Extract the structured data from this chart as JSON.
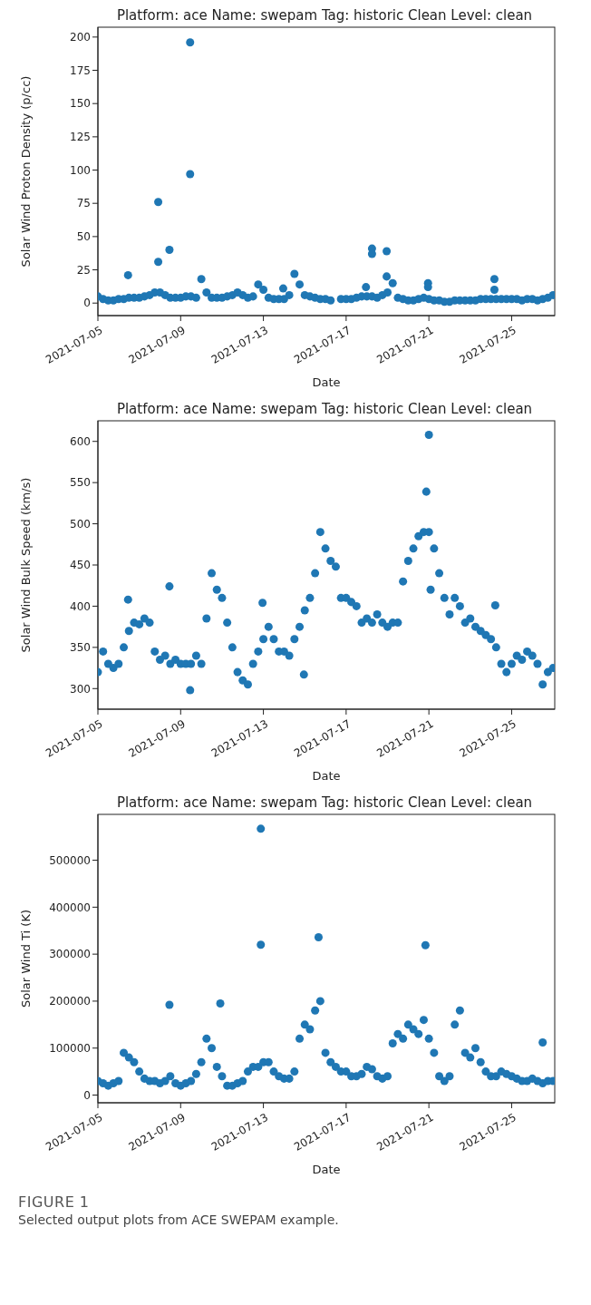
{
  "chart_data": [
    {
      "type": "scatter",
      "title": "Platform: ace Name: swepam Tag: historic Clean Level: clean",
      "xlabel": "Date",
      "ylabel": "Solar Wind Proton Density (p/cc)",
      "x": [
        "2021-07-05T00:00",
        "2021-07-05T06:00",
        "2021-07-05T12:00",
        "2021-07-05T18:00",
        "2021-07-06T00:00",
        "2021-07-06T06:00",
        "2021-07-06T12:00",
        "2021-07-06T18:00",
        "2021-07-07T00:00",
        "2021-07-07T06:00",
        "2021-07-07T12:00",
        "2021-07-07T18:00",
        "2021-07-08T00:00",
        "2021-07-08T06:00",
        "2021-07-08T12:00",
        "2021-07-08T18:00",
        "2021-07-09T00:00",
        "2021-07-09T06:00",
        "2021-07-09T12:00",
        "2021-07-09T18:00",
        "2021-07-10T00:00",
        "2021-07-10T06:00",
        "2021-07-10T12:00",
        "2021-07-10T18:00",
        "2021-07-11T00:00",
        "2021-07-11T06:00",
        "2021-07-11T12:00",
        "2021-07-11T18:00",
        "2021-07-12T00:00",
        "2021-07-12T06:00",
        "2021-07-12T12:00",
        "2021-07-12T18:00",
        "2021-07-13T00:00",
        "2021-07-13T06:00",
        "2021-07-13T12:00",
        "2021-07-13T18:00",
        "2021-07-14T00:00",
        "2021-07-14T06:00",
        "2021-07-14T12:00",
        "2021-07-14T18:00",
        "2021-07-15T00:00",
        "2021-07-15T06:00",
        "2021-07-15T12:00",
        "2021-07-15T18:00",
        "2021-07-16T00:00",
        "2021-07-16T06:00",
        "2021-07-16T12:00",
        "2021-07-16T18:00",
        "2021-07-17T00:00",
        "2021-07-17T06:00",
        "2021-07-17T12:00",
        "2021-07-17T18:00",
        "2021-07-18T00:00",
        "2021-07-18T06:00",
        "2021-07-18T12:00",
        "2021-07-18T18:00",
        "2021-07-19T00:00",
        "2021-07-19T06:00",
        "2021-07-19T12:00",
        "2021-07-19T18:00",
        "2021-07-20T00:00",
        "2021-07-20T06:00",
        "2021-07-20T12:00",
        "2021-07-20T18:00",
        "2021-07-21T00:00",
        "2021-07-21T06:00",
        "2021-07-21T12:00",
        "2021-07-21T18:00",
        "2021-07-22T00:00",
        "2021-07-22T06:00",
        "2021-07-22T12:00",
        "2021-07-22T18:00",
        "2021-07-23T00:00",
        "2021-07-23T06:00",
        "2021-07-23T12:00",
        "2021-07-23T18:00",
        "2021-07-24T00:00",
        "2021-07-24T06:00",
        "2021-07-24T12:00",
        "2021-07-24T18:00",
        "2021-07-25T00:00",
        "2021-07-25T06:00",
        "2021-07-25T12:00",
        "2021-07-25T18:00",
        "2021-07-26T00:00",
        "2021-07-26T06:00",
        "2021-07-26T12:00",
        "2021-07-26T18:00",
        "2021-07-27T00:00"
      ],
      "marker": "circle",
      "xlim": [
        "2021-07-05",
        "2021-07-27T02:00"
      ],
      "xticks": [
        "2021-07-05",
        "2021-07-09",
        "2021-07-13",
        "2021-07-17",
        "2021-07-21",
        "2021-07-25"
      ],
      "ylim": [
        -9.4,
        207.4
      ],
      "yticks": [
        0,
        25,
        50,
        75,
        100,
        125,
        150,
        175,
        200
      ],
      "series": [
        {
          "color": "#1f77b4",
          "values": [
            5,
            3,
            2,
            2,
            3,
            3,
            4,
            4,
            4,
            5,
            6,
            8,
            8,
            6,
            4,
            4,
            4,
            5,
            5,
            4,
            18,
            8,
            4,
            4,
            4,
            5,
            6,
            8,
            6,
            4,
            5,
            14,
            10,
            4,
            3,
            3,
            3,
            6,
            22,
            14,
            6,
            5,
            4,
            3,
            3,
            2,
            null,
            3,
            3,
            3,
            4,
            5,
            5,
            5,
            4,
            6,
            8,
            15,
            4,
            3,
            2,
            2,
            3,
            4,
            3,
            2,
            2,
            1,
            1,
            2,
            2,
            2,
            2,
            2,
            3,
            3,
            3,
            3,
            3,
            3,
            3,
            3,
            2,
            3,
            3,
            2,
            3,
            4,
            6
          ]
        },
        {
          "color": "#1f77b4",
          "x": [
            "2021-07-06T11:00",
            "2021-07-07T22:00",
            "2021-07-07T22:00",
            "2021-07-08T11:00",
            "2021-07-09T11:00",
            "2021-07-09T11:00",
            "2021-07-13T23:00",
            "2021-07-17T23:00",
            "2021-07-18T06:00",
            "2021-07-18T06:00",
            "2021-07-18T23:00",
            "2021-07-18T23:00",
            "2021-07-20T23:00",
            "2021-07-20T23:00",
            "2021-07-24T04:00",
            "2021-07-24T04:00"
          ],
          "values": [
            21,
            76,
            31,
            40,
            196,
            97,
            11,
            12,
            41,
            37,
            39,
            20,
            15,
            12,
            18,
            10
          ]
        }
      ]
    },
    {
      "type": "scatter",
      "title": "Platform: ace Name: swepam Tag: historic Clean Level: clean",
      "xlabel": "Date",
      "ylabel": "Solar Wind Bulk Speed (km/s)",
      "x": [
        "2021-07-05T00:00",
        "2021-07-05T06:00",
        "2021-07-05T12:00",
        "2021-07-05T18:00",
        "2021-07-06T00:00",
        "2021-07-06T06:00",
        "2021-07-06T12:00",
        "2021-07-06T18:00",
        "2021-07-07T00:00",
        "2021-07-07T06:00",
        "2021-07-07T12:00",
        "2021-07-07T18:00",
        "2021-07-08T00:00",
        "2021-07-08T06:00",
        "2021-07-08T12:00",
        "2021-07-08T18:00",
        "2021-07-09T00:00",
        "2021-07-09T06:00",
        "2021-07-09T12:00",
        "2021-07-09T18:00",
        "2021-07-10T00:00",
        "2021-07-10T06:00",
        "2021-07-10T12:00",
        "2021-07-10T18:00",
        "2021-07-11T00:00",
        "2021-07-11T06:00",
        "2021-07-11T12:00",
        "2021-07-11T18:00",
        "2021-07-12T00:00",
        "2021-07-12T06:00",
        "2021-07-12T12:00",
        "2021-07-12T18:00",
        "2021-07-13T00:00",
        "2021-07-13T06:00",
        "2021-07-13T12:00",
        "2021-07-13T18:00",
        "2021-07-14T00:00",
        "2021-07-14T06:00",
        "2021-07-14T12:00",
        "2021-07-14T18:00",
        "2021-07-15T00:00",
        "2021-07-15T06:00",
        "2021-07-15T12:00",
        "2021-07-15T18:00",
        "2021-07-16T00:00",
        "2021-07-16T06:00",
        "2021-07-16T12:00",
        "2021-07-16T18:00",
        "2021-07-17T00:00",
        "2021-07-17T06:00",
        "2021-07-17T12:00",
        "2021-07-17T18:00",
        "2021-07-18T00:00",
        "2021-07-18T06:00",
        "2021-07-18T12:00",
        "2021-07-18T18:00",
        "2021-07-19T00:00",
        "2021-07-19T06:00",
        "2021-07-19T12:00",
        "2021-07-19T18:00",
        "2021-07-20T00:00",
        "2021-07-20T06:00",
        "2021-07-20T12:00",
        "2021-07-20T18:00",
        "2021-07-21T00:00",
        "2021-07-21T06:00",
        "2021-07-21T12:00",
        "2021-07-21T18:00",
        "2021-07-22T00:00",
        "2021-07-22T06:00",
        "2021-07-22T12:00",
        "2021-07-22T18:00",
        "2021-07-23T00:00",
        "2021-07-23T06:00",
        "2021-07-23T12:00",
        "2021-07-23T18:00",
        "2021-07-24T00:00",
        "2021-07-24T06:00",
        "2021-07-24T12:00",
        "2021-07-24T18:00",
        "2021-07-25T00:00",
        "2021-07-25T06:00",
        "2021-07-25T12:00",
        "2021-07-25T18:00",
        "2021-07-26T00:00",
        "2021-07-26T06:00",
        "2021-07-26T12:00",
        "2021-07-26T18:00",
        "2021-07-27T00:00"
      ],
      "marker": "circle",
      "xlim": [
        "2021-07-05",
        "2021-07-27T02:00"
      ],
      "xticks": [
        "2021-07-05",
        "2021-07-09",
        "2021-07-13",
        "2021-07-17",
        "2021-07-21",
        "2021-07-25"
      ],
      "ylim": [
        275,
        625
      ],
      "yticks": [
        300,
        350,
        400,
        450,
        500,
        550,
        600
      ],
      "series": [
        {
          "color": "#1f77b4",
          "values": [
            320,
            345,
            330,
            325,
            330,
            350,
            370,
            380,
            378,
            385,
            380,
            345,
            335,
            340,
            330,
            335,
            330,
            330,
            330,
            340,
            330,
            385,
            440,
            420,
            410,
            380,
            350,
            320,
            310,
            305,
            330,
            345,
            360,
            375,
            360,
            345,
            345,
            340,
            360,
            375,
            395,
            410,
            440,
            490,
            470,
            455,
            448,
            410,
            410,
            405,
            400,
            380,
            385,
            380,
            390,
            380,
            375,
            380,
            380,
            430,
            455,
            470,
            485,
            490,
            490,
            470,
            440,
            410,
            390,
            410,
            400,
            380,
            385,
            375,
            370,
            365,
            360,
            350,
            330,
            320,
            330,
            340,
            335,
            345,
            340,
            330,
            305,
            320,
            325
          ]
        },
        {
          "color": "#1f77b4",
          "x": [
            "2021-07-06T11:00",
            "2021-07-08T11:00",
            "2021-07-09T11:00",
            "2021-07-12T23:00",
            "2021-07-14T23:00",
            "2021-07-21T00:00",
            "2021-07-20T21:00",
            "2021-07-21T02:00",
            "2021-07-24T05:00"
          ],
          "values": [
            408,
            424,
            298,
            404,
            317,
            608,
            539,
            420,
            401
          ]
        }
      ]
    },
    {
      "type": "scatter",
      "title": "Platform: ace Name: swepam Tag: historic Clean Level: clean",
      "xlabel": "Date",
      "ylabel": "Solar Wind Ti (K)",
      "x": [
        "2021-07-05T00:00",
        "2021-07-05T06:00",
        "2021-07-05T12:00",
        "2021-07-05T18:00",
        "2021-07-06T00:00",
        "2021-07-06T06:00",
        "2021-07-06T12:00",
        "2021-07-06T18:00",
        "2021-07-07T00:00",
        "2021-07-07T06:00",
        "2021-07-07T12:00",
        "2021-07-07T18:00",
        "2021-07-08T00:00",
        "2021-07-08T06:00",
        "2021-07-08T12:00",
        "2021-07-08T18:00",
        "2021-07-09T00:00",
        "2021-07-09T06:00",
        "2021-07-09T12:00",
        "2021-07-09T18:00",
        "2021-07-10T00:00",
        "2021-07-10T06:00",
        "2021-07-10T12:00",
        "2021-07-10T18:00",
        "2021-07-11T00:00",
        "2021-07-11T06:00",
        "2021-07-11T12:00",
        "2021-07-11T18:00",
        "2021-07-12T00:00",
        "2021-07-12T06:00",
        "2021-07-12T12:00",
        "2021-07-12T18:00",
        "2021-07-13T00:00",
        "2021-07-13T06:00",
        "2021-07-13T12:00",
        "2021-07-13T18:00",
        "2021-07-14T00:00",
        "2021-07-14T06:00",
        "2021-07-14T12:00",
        "2021-07-14T18:00",
        "2021-07-15T00:00",
        "2021-07-15T06:00",
        "2021-07-15T12:00",
        "2021-07-15T18:00",
        "2021-07-16T00:00",
        "2021-07-16T06:00",
        "2021-07-16T12:00",
        "2021-07-16T18:00",
        "2021-07-17T00:00",
        "2021-07-17T06:00",
        "2021-07-17T12:00",
        "2021-07-17T18:00",
        "2021-07-18T00:00",
        "2021-07-18T06:00",
        "2021-07-18T12:00",
        "2021-07-18T18:00",
        "2021-07-19T00:00",
        "2021-07-19T06:00",
        "2021-07-19T12:00",
        "2021-07-19T18:00",
        "2021-07-20T00:00",
        "2021-07-20T06:00",
        "2021-07-20T12:00",
        "2021-07-20T18:00",
        "2021-07-21T00:00",
        "2021-07-21T06:00",
        "2021-07-21T12:00",
        "2021-07-21T18:00",
        "2021-07-22T00:00",
        "2021-07-22T06:00",
        "2021-07-22T12:00",
        "2021-07-22T18:00",
        "2021-07-23T00:00",
        "2021-07-23T06:00",
        "2021-07-23T12:00",
        "2021-07-23T18:00",
        "2021-07-24T00:00",
        "2021-07-24T06:00",
        "2021-07-24T12:00",
        "2021-07-24T18:00",
        "2021-07-25T00:00",
        "2021-07-25T06:00",
        "2021-07-25T12:00",
        "2021-07-25T18:00",
        "2021-07-26T00:00",
        "2021-07-26T06:00",
        "2021-07-26T12:00",
        "2021-07-26T18:00",
        "2021-07-27T00:00"
      ],
      "marker": "circle",
      "xlim": [
        "2021-07-05",
        "2021-07-27T02:00"
      ],
      "xticks": [
        "2021-07-05",
        "2021-07-09",
        "2021-07-13",
        "2021-07-17",
        "2021-07-21",
        "2021-07-25"
      ],
      "ylim": [
        -16400,
        597600
      ],
      "yticks": [
        0,
        100000,
        200000,
        300000,
        400000,
        500000
      ],
      "annotations": [
        "FIGURE 1",
        "Selected output plots from ACE SWEPAM example."
      ],
      "series": [
        {
          "color": "#1f77b4",
          "values": [
            30000,
            25000,
            20000,
            25000,
            30000,
            90000,
            80000,
            70000,
            50000,
            35000,
            30000,
            30000,
            25000,
            30000,
            40000,
            25000,
            20000,
            25000,
            30000,
            45000,
            70000,
            120000,
            100000,
            60000,
            40000,
            20000,
            20000,
            25000,
            30000,
            50000,
            60000,
            60000,
            70000,
            70000,
            50000,
            40000,
            35000,
            35000,
            50000,
            120000,
            150000,
            140000,
            180000,
            200000,
            90000,
            70000,
            60000,
            50000,
            50000,
            40000,
            40000,
            45000,
            60000,
            55000,
            40000,
            35000,
            40000,
            110000,
            130000,
            120000,
            150000,
            140000,
            130000,
            160000,
            120000,
            90000,
            40000,
            30000,
            40000,
            150000,
            180000,
            90000,
            80000,
            100000,
            70000,
            50000,
            40000,
            40000,
            50000,
            45000,
            40000,
            35000,
            30000,
            30000,
            35000,
            30000,
            25000,
            30000,
            30000
          ]
        },
        {
          "color": "#1f77b4",
          "x": [
            "2021-07-08T11:00",
            "2021-07-12T21:00",
            "2021-07-12T21:00",
            "2021-07-15T16:00",
            "2021-07-20T20:00",
            "2021-07-26T12:00",
            "2021-07-10T22:00"
          ],
          "values": [
            192000,
            567000,
            320000,
            336000,
            319000,
            112000,
            195000
          ]
        }
      ]
    }
  ]
}
